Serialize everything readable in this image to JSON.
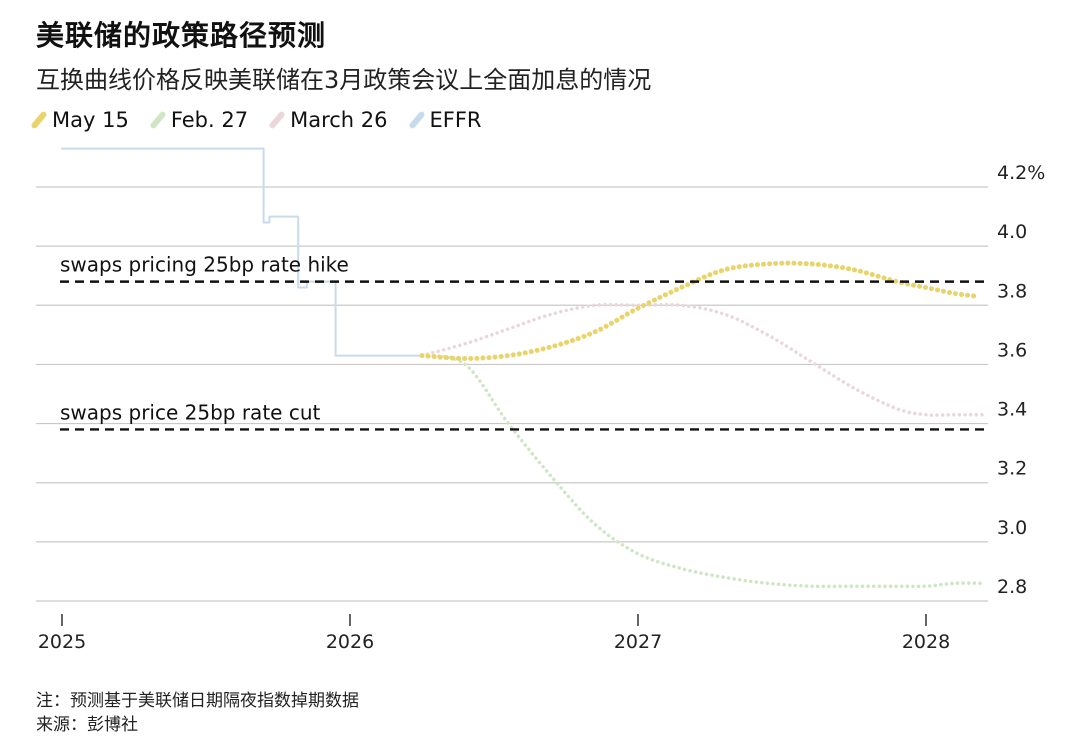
{
  "header": {
    "title": "美联储的政策路径预测",
    "subtitle": "互换曲线价格反映美联储在3月政策会议上全面加息的情况"
  },
  "notes": {
    "note": "注：预测基于美联储日期隔夜指数掉期数据",
    "source": "来源：彭博社"
  },
  "chart_data": {
    "type": "line",
    "title": "美联储的政策路径预测",
    "subtitle": "互换曲线价格反映美联储在3月政策会议上全面加息的情况",
    "xlim": [
      2025.0,
      2028.2
    ],
    "ylim": [
      2.7,
      4.32
    ],
    "x_ticks": [
      {
        "value": 2025,
        "label": "2025"
      },
      {
        "value": 2026,
        "label": "2026"
      },
      {
        "value": 2027,
        "label": "2027"
      },
      {
        "value": 2028,
        "label": "2028"
      }
    ],
    "y_ticks": [
      {
        "value": 4.2,
        "label": "4.2%"
      },
      {
        "value": 4.0,
        "label": "4.0"
      },
      {
        "value": 3.8,
        "label": "3.8"
      },
      {
        "value": 3.6,
        "label": "3.6"
      },
      {
        "value": 3.4,
        "label": "3.4"
      },
      {
        "value": 3.2,
        "label": "3.2"
      },
      {
        "value": 3.0,
        "label": "3.0"
      },
      {
        "value": 2.8,
        "label": "2.8"
      }
    ],
    "grid": true,
    "legend_position": "top-left",
    "annotations": [
      {
        "label": "swaps pricing 25bp rate hike",
        "y": 3.88
      },
      {
        "label": "swaps price 25bp rate cut",
        "y": 3.38
      }
    ],
    "series": [
      {
        "name": "May 15",
        "color": "#e8d46a",
        "style": "dotted",
        "x": [
          2026.25,
          2026.4,
          2026.55,
          2026.7,
          2026.85,
          2027.0,
          2027.15,
          2027.3,
          2027.45,
          2027.6,
          2027.75,
          2027.9,
          2028.0,
          2028.1,
          2028.18
        ],
        "y": [
          3.63,
          3.62,
          3.63,
          3.66,
          3.71,
          3.79,
          3.86,
          3.92,
          3.94,
          3.94,
          3.92,
          3.88,
          3.86,
          3.84,
          3.83
        ]
      },
      {
        "name": "Feb. 27",
        "color": "#cfe6c5",
        "style": "dotted",
        "x": [
          2026.25,
          2026.4,
          2026.55,
          2026.7,
          2026.85,
          2027.0,
          2027.15,
          2027.3,
          2027.45,
          2027.6,
          2027.75,
          2027.9,
          2028.0,
          2028.1,
          2028.2
        ],
        "y": [
          3.63,
          3.6,
          3.4,
          3.22,
          3.06,
          2.96,
          2.91,
          2.88,
          2.86,
          2.85,
          2.85,
          2.85,
          2.85,
          2.86,
          2.86
        ]
      },
      {
        "name": "March 26",
        "color": "#ead7dc",
        "style": "dotted",
        "x": [
          2026.25,
          2026.4,
          2026.55,
          2026.7,
          2026.85,
          2027.0,
          2027.15,
          2027.3,
          2027.45,
          2027.6,
          2027.75,
          2027.9,
          2028.0,
          2028.1,
          2028.2
        ],
        "y": [
          3.63,
          3.67,
          3.72,
          3.77,
          3.8,
          3.8,
          3.8,
          3.77,
          3.7,
          3.61,
          3.52,
          3.45,
          3.43,
          3.43,
          3.43
        ]
      },
      {
        "name": "EFFR",
        "color": "#c7dbec",
        "style": "solid",
        "x": [
          2025.0,
          2025.7,
          2025.7,
          2025.72,
          2025.72,
          2025.82,
          2025.82,
          2025.85,
          2025.85,
          2025.88,
          2025.88,
          2025.95,
          2025.95,
          2026.25
        ],
        "y": [
          4.33,
          4.33,
          4.08,
          4.08,
          4.1,
          4.1,
          3.86,
          3.86,
          3.88,
          3.88,
          3.88,
          3.88,
          3.63,
          3.63
        ]
      }
    ]
  }
}
